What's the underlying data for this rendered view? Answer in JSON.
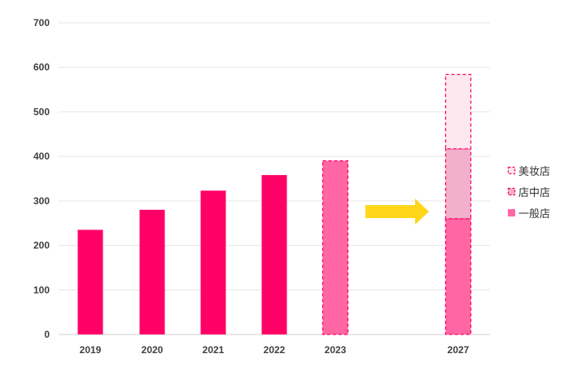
{
  "chart_data": {
    "type": "bar",
    "title": "",
    "xlabel": "",
    "ylabel": "",
    "ylim": [
      0,
      700
    ],
    "yticks": [
      0,
      100,
      200,
      300,
      400,
      500,
      600,
      700
    ],
    "grid": true,
    "legend_position": "right",
    "categories": [
      "2019",
      "2020",
      "2021",
      "2022",
      "2023",
      "2027"
    ],
    "series": [
      {
        "name": "一般店",
        "values": [
          235,
          280,
          323,
          358,
          390,
          260
        ]
      },
      {
        "name": "店中店",
        "values": [
          0,
          0,
          0,
          0,
          0,
          157
        ]
      },
      {
        "name": "美妆店",
        "values": [
          0,
          0,
          0,
          0,
          0,
          167
        ]
      }
    ],
    "bar_styles": [
      "solid",
      "solid",
      "solid",
      "solid",
      "dashed",
      "dashed"
    ],
    "annotation": {
      "type": "arrow",
      "from": "2023",
      "to": "2027"
    },
    "colors": {
      "solid": "#ff0066",
      "general_forecast": "#ff66a3",
      "shop_in_shop": "#f2b0cb",
      "beauty": "#fde8f0",
      "dash": "#ff0066",
      "arrow": "#ffd61a",
      "grid": "#e6e6e6"
    }
  }
}
